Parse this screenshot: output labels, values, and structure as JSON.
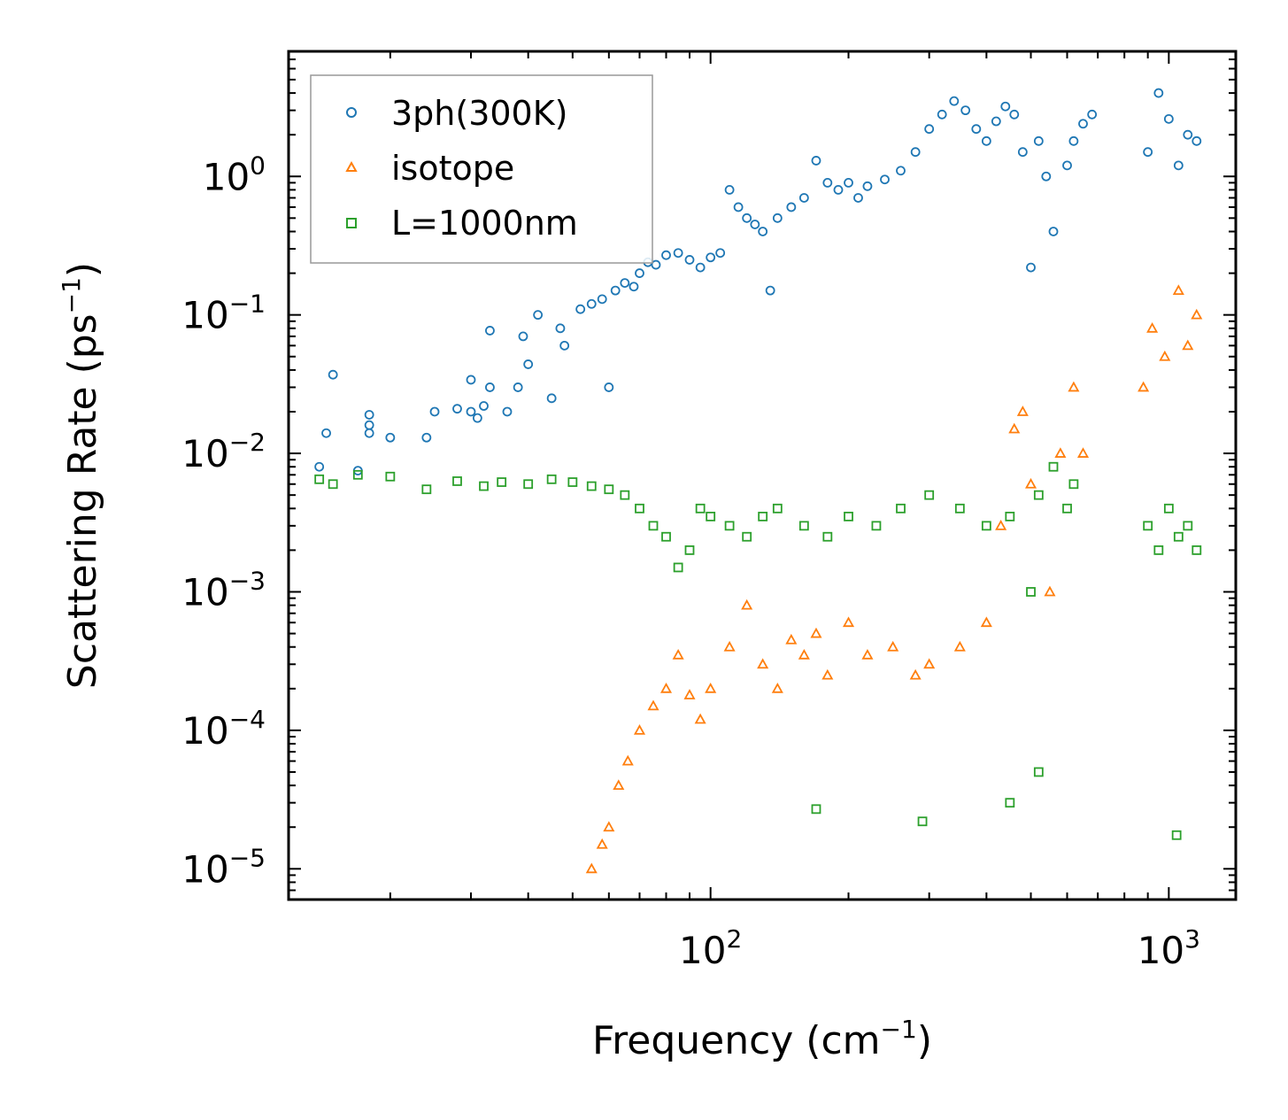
{
  "chart_data": {
    "type": "scatter",
    "title": "",
    "xlabel": "Frequency (cm",
    "xlabel_sup": "−1",
    "xlabel_end": ")",
    "ylabel": "Scattering Rate (ps",
    "ylabel_sup": "−1",
    "ylabel_end": ")",
    "xscale": "log",
    "yscale": "log",
    "xlim": [
      12,
      1400
    ],
    "ylim": [
      6e-06,
      8
    ],
    "x_ticks": [
      {
        "value": 100,
        "base": "10",
        "exp": "2"
      },
      {
        "value": 1000,
        "base": "10",
        "exp": "3"
      }
    ],
    "y_ticks": [
      {
        "value": 1,
        "base": "10",
        "exp": "0"
      },
      {
        "value": 0.1,
        "base": "10",
        "exp": "−1"
      },
      {
        "value": 0.01,
        "base": "10",
        "exp": "−2"
      },
      {
        "value": 0.001,
        "base": "10",
        "exp": "−3"
      },
      {
        "value": 0.0001,
        "base": "10",
        "exp": "−4"
      },
      {
        "value": 1e-05,
        "base": "10",
        "exp": "−5"
      }
    ],
    "legend_position": "top-left",
    "series": [
      {
        "name": "3ph(300K)",
        "marker": "circle",
        "color": "#1f77b4",
        "points": [
          [
            14,
            0.008
          ],
          [
            15,
            0.037
          ],
          [
            14.5,
            0.014
          ],
          [
            17,
            0.0075
          ],
          [
            18,
            0.019
          ],
          [
            18,
            0.016
          ],
          [
            18,
            0.014
          ],
          [
            20,
            0.013
          ],
          [
            24,
            0.013
          ],
          [
            25,
            0.02
          ],
          [
            28,
            0.021
          ],
          [
            30,
            0.02
          ],
          [
            30,
            0.034
          ],
          [
            31,
            0.018
          ],
          [
            32,
            0.022
          ],
          [
            33,
            0.077
          ],
          [
            33,
            0.03
          ],
          [
            36,
            0.02
          ],
          [
            38,
            0.03
          ],
          [
            39,
            0.07
          ],
          [
            40,
            0.044
          ],
          [
            42,
            0.1
          ],
          [
            45,
            0.025
          ],
          [
            47,
            0.08
          ],
          [
            48,
            0.06
          ],
          [
            52,
            0.11
          ],
          [
            55,
            0.12
          ],
          [
            58,
            0.13
          ],
          [
            60,
            0.03
          ],
          [
            62,
            0.15
          ],
          [
            65,
            0.17
          ],
          [
            68,
            0.16
          ],
          [
            70,
            0.2
          ],
          [
            73,
            0.24
          ],
          [
            76,
            0.23
          ],
          [
            80,
            0.27
          ],
          [
            85,
            0.28
          ],
          [
            90,
            0.25
          ],
          [
            95,
            0.22
          ],
          [
            100,
            0.26
          ],
          [
            105,
            0.28
          ],
          [
            110,
            0.8
          ],
          [
            115,
            0.6
          ],
          [
            120,
            0.5
          ],
          [
            125,
            0.45
          ],
          [
            130,
            0.4
          ],
          [
            135,
            0.15
          ],
          [
            140,
            0.5
          ],
          [
            150,
            0.6
          ],
          [
            160,
            0.7
          ],
          [
            170,
            1.3
          ],
          [
            180,
            0.9
          ],
          [
            190,
            0.8
          ],
          [
            200,
            0.9
          ],
          [
            210,
            0.7
          ],
          [
            220,
            0.85
          ],
          [
            240,
            0.95
          ],
          [
            260,
            1.1
          ],
          [
            280,
            1.5
          ],
          [
            300,
            2.2
          ],
          [
            320,
            2.8
          ],
          [
            340,
            3.5
          ],
          [
            360,
            3.0
          ],
          [
            380,
            2.2
          ],
          [
            400,
            1.8
          ],
          [
            420,
            2.5
          ],
          [
            440,
            3.2
          ],
          [
            460,
            2.8
          ],
          [
            480,
            1.5
          ],
          [
            500,
            0.22
          ],
          [
            520,
            1.8
          ],
          [
            540,
            1.0
          ],
          [
            560,
            0.4
          ],
          [
            600,
            1.2
          ],
          [
            620,
            1.8
          ],
          [
            650,
            2.4
          ],
          [
            680,
            2.8
          ],
          [
            900,
            1.5
          ],
          [
            950,
            4.0
          ],
          [
            1000,
            2.6
          ],
          [
            1050,
            1.2
          ],
          [
            1100,
            2.0
          ],
          [
            1150,
            1.8
          ]
        ]
      },
      {
        "name": "isotope",
        "marker": "triangle",
        "color": "#ff7f0e",
        "points": [
          [
            55,
            1e-05
          ],
          [
            58,
            1.5e-05
          ],
          [
            60,
            2e-05
          ],
          [
            63,
            4e-05
          ],
          [
            66,
            6e-05
          ],
          [
            70,
            0.0001
          ],
          [
            75,
            0.00015
          ],
          [
            80,
            0.0002
          ],
          [
            85,
            0.00035
          ],
          [
            90,
            0.00018
          ],
          [
            95,
            0.00012
          ],
          [
            100,
            0.0002
          ],
          [
            110,
            0.0004
          ],
          [
            120,
            0.0008
          ],
          [
            130,
            0.0003
          ],
          [
            140,
            0.0002
          ],
          [
            150,
            0.00045
          ],
          [
            160,
            0.00035
          ],
          [
            170,
            0.0005
          ],
          [
            180,
            0.00025
          ],
          [
            200,
            0.0006
          ],
          [
            220,
            0.00035
          ],
          [
            250,
            0.0004
          ],
          [
            280,
            0.00025
          ],
          [
            300,
            0.0003
          ],
          [
            350,
            0.0004
          ],
          [
            400,
            0.0006
          ],
          [
            430,
            0.003
          ],
          [
            460,
            0.015
          ],
          [
            480,
            0.02
          ],
          [
            500,
            0.006
          ],
          [
            550,
            0.001
          ],
          [
            580,
            0.01
          ],
          [
            620,
            0.03
          ],
          [
            650,
            0.01
          ],
          [
            880,
            0.03
          ],
          [
            920,
            0.08
          ],
          [
            980,
            0.05
          ],
          [
            1050,
            0.15
          ],
          [
            1100,
            0.06
          ],
          [
            1150,
            0.1
          ]
        ]
      },
      {
        "name": "L=1000nm",
        "marker": "square",
        "color": "#2ca02c",
        "points": [
          [
            14,
            0.0065
          ],
          [
            15,
            0.006
          ],
          [
            17,
            0.007
          ],
          [
            20,
            0.0068
          ],
          [
            24,
            0.0055
          ],
          [
            28,
            0.0063
          ],
          [
            32,
            0.0058
          ],
          [
            35,
            0.0062
          ],
          [
            40,
            0.006
          ],
          [
            45,
            0.0065
          ],
          [
            50,
            0.0062
          ],
          [
            55,
            0.0058
          ],
          [
            60,
            0.0055
          ],
          [
            65,
            0.005
          ],
          [
            70,
            0.004
          ],
          [
            75,
            0.003
          ],
          [
            80,
            0.0025
          ],
          [
            85,
            0.0015
          ],
          [
            90,
            0.002
          ],
          [
            95,
            0.004
          ],
          [
            100,
            0.0035
          ],
          [
            110,
            0.003
          ],
          [
            120,
            0.0025
          ],
          [
            130,
            0.0035
          ],
          [
            140,
            0.004
          ],
          [
            160,
            0.003
          ],
          [
            180,
            0.0025
          ],
          [
            200,
            0.0035
          ],
          [
            230,
            0.003
          ],
          [
            260,
            0.004
          ],
          [
            300,
            0.005
          ],
          [
            350,
            0.004
          ],
          [
            400,
            0.003
          ],
          [
            450,
            0.0035
          ],
          [
            500,
            0.001
          ],
          [
            520,
            0.005
          ],
          [
            560,
            0.008
          ],
          [
            600,
            0.004
          ],
          [
            620,
            0.006
          ],
          [
            900,
            0.003
          ],
          [
            950,
            0.002
          ],
          [
            1000,
            0.004
          ],
          [
            1050,
            0.0025
          ],
          [
            1100,
            0.003
          ],
          [
            1150,
            0.002
          ],
          [
            170,
            2.7e-05
          ],
          [
            290,
            2.2e-05
          ],
          [
            1040,
            1.75e-05
          ],
          [
            450,
            3e-05
          ],
          [
            520,
            5e-05
          ]
        ]
      }
    ]
  }
}
